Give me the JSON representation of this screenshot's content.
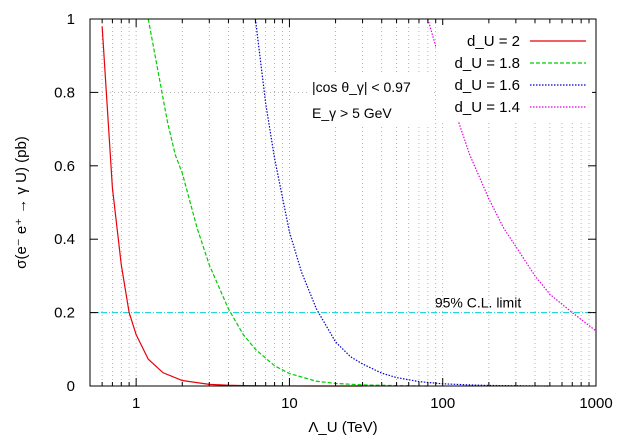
{
  "chart_data": {
    "type": "line",
    "xlabel": "Λ_U (TeV)",
    "ylabel": "σ(e⁻ e⁺ → γ U) (pb)",
    "xscale": "log",
    "xlim": [
      0.5,
      1000
    ],
    "ylim": [
      0,
      1
    ],
    "grid": "vertical-minor-dotted",
    "x_tick_labels": [
      "1",
      "10",
      "100",
      "1000"
    ],
    "y_tick_labels": [
      "0",
      "0.2",
      "0.4",
      "0.6",
      "0.8",
      "1"
    ],
    "legend_position": "top-right",
    "series": [
      {
        "name": "d_U = 2",
        "color": "#e8000b",
        "dash": "solid",
        "x": [
          0.6,
          0.7,
          0.8,
          0.9,
          1.0,
          1.2,
          1.5,
          2.0,
          3.0,
          4.0,
          5.0,
          7.0,
          10.0,
          15.0,
          20.0,
          30.0
        ],
        "y": [
          0.98,
          0.54,
          0.33,
          0.2,
          0.14,
          0.073,
          0.036,
          0.015,
          0.0045,
          0.002,
          0.001,
          0.0004,
          0.00015,
          5e-05,
          2e-05,
          0.0
        ]
      },
      {
        "name": "d_U = 1.8",
        "color": "#00cc00",
        "dash": "dashed",
        "x": [
          1.2,
          1.4,
          1.6,
          1.8,
          2.0,
          2.5,
          3.0,
          4.0,
          5.0,
          6.0,
          8.0,
          10.0,
          15.0,
          20.0,
          30.0,
          50.0,
          80.0
        ],
        "y": [
          1.0,
          0.85,
          0.72,
          0.63,
          0.58,
          0.43,
          0.33,
          0.21,
          0.14,
          0.1,
          0.055,
          0.034,
          0.013,
          0.007,
          0.003,
          0.001,
          0.0
        ]
      },
      {
        "name": "d_U = 1.6",
        "color": "#0000cc",
        "dash": "dotted",
        "x": [
          6.0,
          7.0,
          8.0,
          10.0,
          12.0,
          15.0,
          20.0,
          25.0,
          30.0,
          40.0,
          50.0,
          70.0,
          100.0,
          150.0,
          200.0,
          300.0,
          500.0
        ],
        "y": [
          1.0,
          0.77,
          0.62,
          0.42,
          0.31,
          0.21,
          0.12,
          0.08,
          0.06,
          0.035,
          0.023,
          0.012,
          0.006,
          0.003,
          0.0015,
          0.0007,
          0.0
        ]
      },
      {
        "name": "d_U = 1.4",
        "color": "#e000e0",
        "dash": "dotted",
        "x": [
          80.0,
          100.0,
          120.0,
          150.0,
          200.0,
          250.0,
          300.0,
          400.0,
          500.0,
          700.0,
          1000.0
        ],
        "y": [
          1.0,
          0.86,
          0.75,
          0.63,
          0.51,
          0.43,
          0.38,
          0.3,
          0.25,
          0.2,
          0.15
        ]
      }
    ],
    "reference_line": {
      "label": "95% C.L. limit",
      "y": 0.2,
      "color": "#00d0d0"
    },
    "cut_annotations": [
      "|cos θ_γ| < 0.97",
      "E_γ > 5 GeV"
    ]
  }
}
